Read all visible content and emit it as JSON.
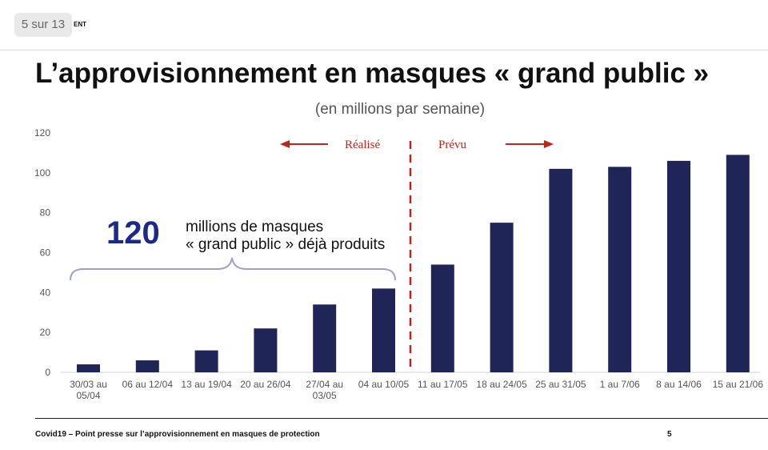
{
  "header": {
    "page_indicator": "5 sur 13",
    "logo_text": "ENT"
  },
  "slide": {
    "title": "L’approvisionnement en masques « grand public »",
    "subtitle": "(en millions par semaine)"
  },
  "chart_data": {
    "type": "bar",
    "title": "L’approvisionnement en masques « grand public »",
    "subtitle": "(en millions par semaine)",
    "categories": [
      [
        "30/03 au",
        "05/04"
      ],
      [
        "06 au 12/04"
      ],
      [
        "13 au 19/04"
      ],
      [
        "20 au 26/04"
      ],
      [
        "27/04 au",
        "03/05"
      ],
      [
        "04 au 10/05"
      ],
      [
        "11 au 17/05"
      ],
      [
        "18 au 24/05"
      ],
      [
        "25 au 31/05"
      ],
      [
        "1 au 7/06"
      ],
      [
        "8 au 14/06"
      ],
      [
        "15 au 21/06"
      ]
    ],
    "values": [
      4,
      6,
      11,
      22,
      34,
      42,
      54,
      75,
      102,
      103,
      106,
      109
    ],
    "ylim": [
      0,
      120
    ],
    "yticks": [
      0,
      20,
      40,
      60,
      80,
      100,
      120
    ],
    "grid": false,
    "bar_color": "#1f2557",
    "annotations": {
      "realise_label": "Réalisé",
      "prevu_label": "Prévu",
      "divider_color": "#c0251c",
      "total_number": "120",
      "total_line1": "millions de masques",
      "total_line2": "« grand public » déjà produits",
      "total_number_color": "#1a2a8a",
      "brace_color": "#9aa3d0"
    }
  },
  "footer": {
    "text": "Covid19 – Point presse sur l’approvisionnement en masques de protection",
    "page_number": "5"
  }
}
